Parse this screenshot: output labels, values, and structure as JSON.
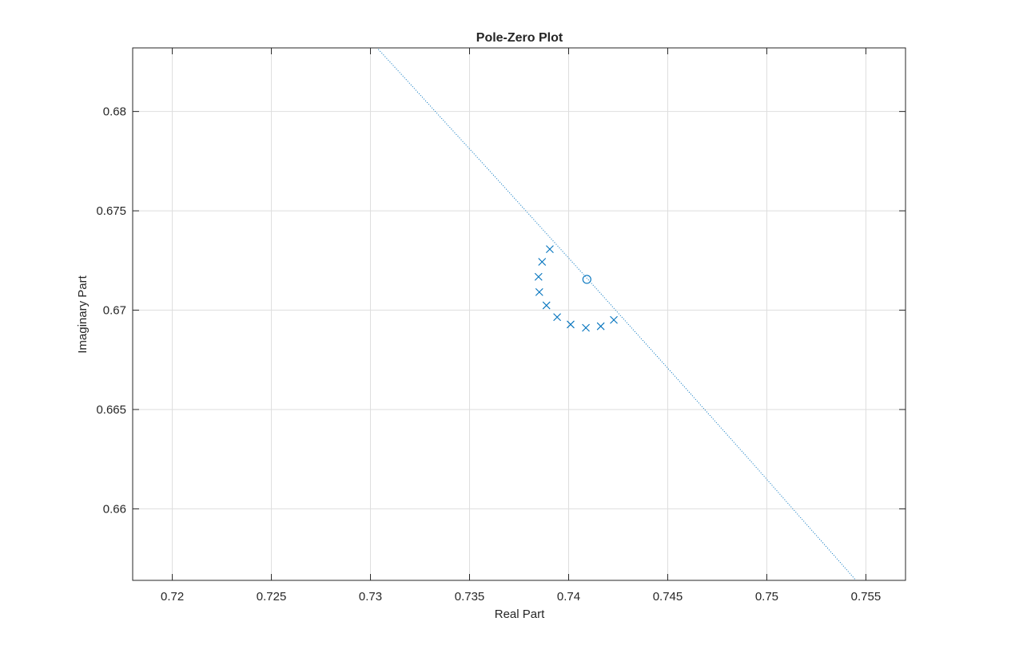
{
  "chart_data": {
    "type": "scatter",
    "title": "Pole-Zero Plot",
    "xlabel": "Real Part",
    "ylabel": "Imaginary Part",
    "xlim": [
      0.718,
      0.757
    ],
    "ylim": [
      0.6564,
      0.6832
    ],
    "xticks": [
      0.72,
      0.725,
      0.73,
      0.735,
      0.74,
      0.745,
      0.75,
      0.755
    ],
    "yticks": [
      0.66,
      0.665,
      0.67,
      0.675,
      0.68
    ],
    "xtick_labels": [
      "0.72",
      "0.725",
      "0.73",
      "0.735",
      "0.74",
      "0.745",
      "0.75",
      "0.755"
    ],
    "ytick_labels": [
      "0.66",
      "0.665",
      "0.67",
      "0.675",
      "0.68"
    ],
    "grid": true,
    "color": "#0072bd",
    "poles": [
      {
        "x": 0.73905,
        "y": 0.67307
      },
      {
        "x": 0.73866,
        "y": 0.67243
      },
      {
        "x": 0.73848,
        "y": 0.67168
      },
      {
        "x": 0.73852,
        "y": 0.67091
      },
      {
        "x": 0.73888,
        "y": 0.67024
      },
      {
        "x": 0.73942,
        "y": 0.66965
      },
      {
        "x": 0.7401,
        "y": 0.66928
      },
      {
        "x": 0.74087,
        "y": 0.66911
      },
      {
        "x": 0.74162,
        "y": 0.66919
      },
      {
        "x": 0.74228,
        "y": 0.66951
      }
    ],
    "zeros": [
      {
        "x": 0.74092,
        "y": 0.67155
      }
    ],
    "unit_circle_line": {
      "style": "dotted",
      "points": [
        {
          "x": 0.72901,
          "y": 0.68464
        },
        {
          "x": 0.733,
          "y": 0.6803
        },
        {
          "x": 0.737,
          "y": 0.67593
        },
        {
          "x": 0.741,
          "y": 0.67152
        },
        {
          "x": 0.745,
          "y": 0.66708
        },
        {
          "x": 0.749,
          "y": 0.66261
        },
        {
          "x": 0.753,
          "y": 0.6581
        },
        {
          "x": 0.757,
          "y": 0.65356
        }
      ]
    }
  }
}
